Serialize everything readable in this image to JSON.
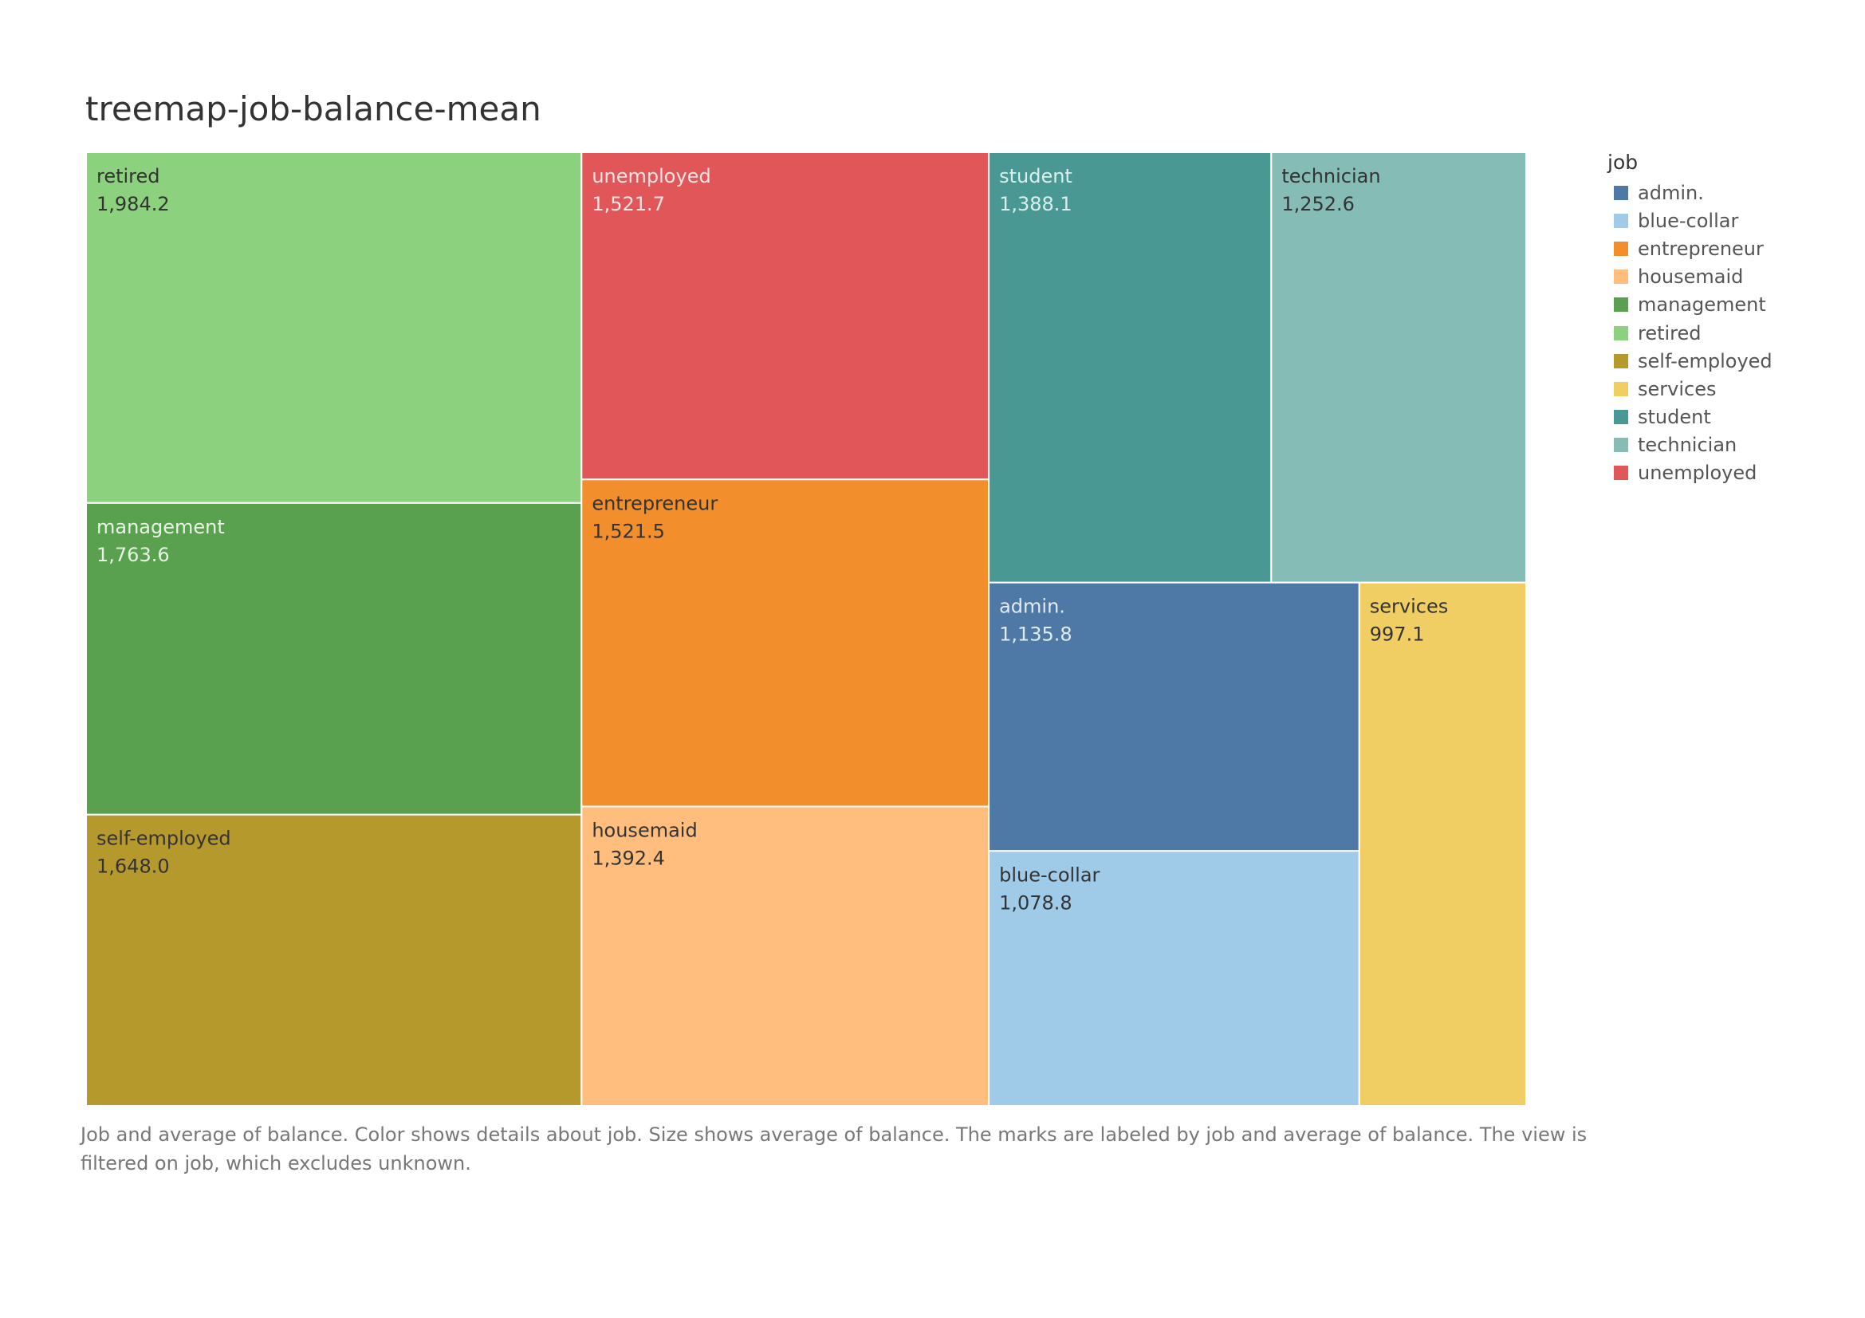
{
  "title": "treemap-job-balance-mean",
  "caption": "Job and average of balance.  Color shows details about job.  Size shows average of balance.  The marks are labeled by job and average of balance. The view is filtered on job, which excludes unknown.",
  "legend": {
    "title": "job",
    "position": "right"
  },
  "chart_data": {
    "type": "treemap",
    "title": "treemap-job-balance-mean",
    "color_field": "job",
    "size_field": "average of balance",
    "series": [
      {
        "name": "retired",
        "value": 1984.2,
        "label": "1,984.2",
        "color": "#8CD17D",
        "text_color": "#333333"
      },
      {
        "name": "management",
        "value": 1763.6,
        "label": "1,763.6",
        "color": "#59A14F",
        "text_color": "#E8F3E5"
      },
      {
        "name": "self-employed",
        "value": 1648.0,
        "label": "1,648.0",
        "color": "#B6992D",
        "text_color": "#333333"
      },
      {
        "name": "unemployed",
        "value": 1521.7,
        "label": "1,521.7",
        "color": "#E15759",
        "text_color": "#FBE4E4"
      },
      {
        "name": "entrepreneur",
        "value": 1521.5,
        "label": "1,521.5",
        "color": "#F28E2B",
        "text_color": "#333333"
      },
      {
        "name": "housemaid",
        "value": 1392.4,
        "label": "1,392.4",
        "color": "#FFBE7D",
        "text_color": "#333333"
      },
      {
        "name": "student",
        "value": 1388.1,
        "label": "1,388.1",
        "color": "#499894",
        "text_color": "#DCEEEC"
      },
      {
        "name": "technician",
        "value": 1252.6,
        "label": "1,252.6",
        "color": "#86BCB6",
        "text_color": "#333333"
      },
      {
        "name": "admin.",
        "value": 1135.8,
        "label": "1,135.8",
        "color": "#4E79A7",
        "text_color": "#E2EAF3"
      },
      {
        "name": "blue-collar",
        "value": 1078.8,
        "label": "1,078.8",
        "color": "#A0CBE8",
        "text_color": "#333333"
      },
      {
        "name": "services",
        "value": 997.1,
        "label": "997.1",
        "color": "#F1CE63",
        "text_color": "#333333"
      }
    ],
    "legend_order": [
      "admin.",
      "blue-collar",
      "entrepreneur",
      "housemaid",
      "management",
      "retired",
      "self-employed",
      "services",
      "student",
      "technician",
      "unemployed"
    ]
  }
}
